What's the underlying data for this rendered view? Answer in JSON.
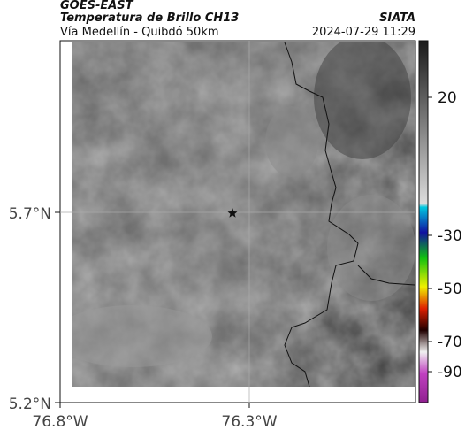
{
  "header": {
    "satellite": "GOES-EAST",
    "title": "Temperatura de Brillo CH13",
    "subtitle": "Vía Medellín - Quibdó 50km",
    "source": "SIATA",
    "datetime": "2024-07-29 11:29"
  },
  "map": {
    "lat_ticks": [
      "5.7°N",
      "5.2°N"
    ],
    "lon_ticks": [
      "76.8°W",
      "76.3°W"
    ]
  },
  "colorbar": {
    "ticks": [
      20,
      -30,
      -50,
      -70,
      -90
    ]
  }
}
